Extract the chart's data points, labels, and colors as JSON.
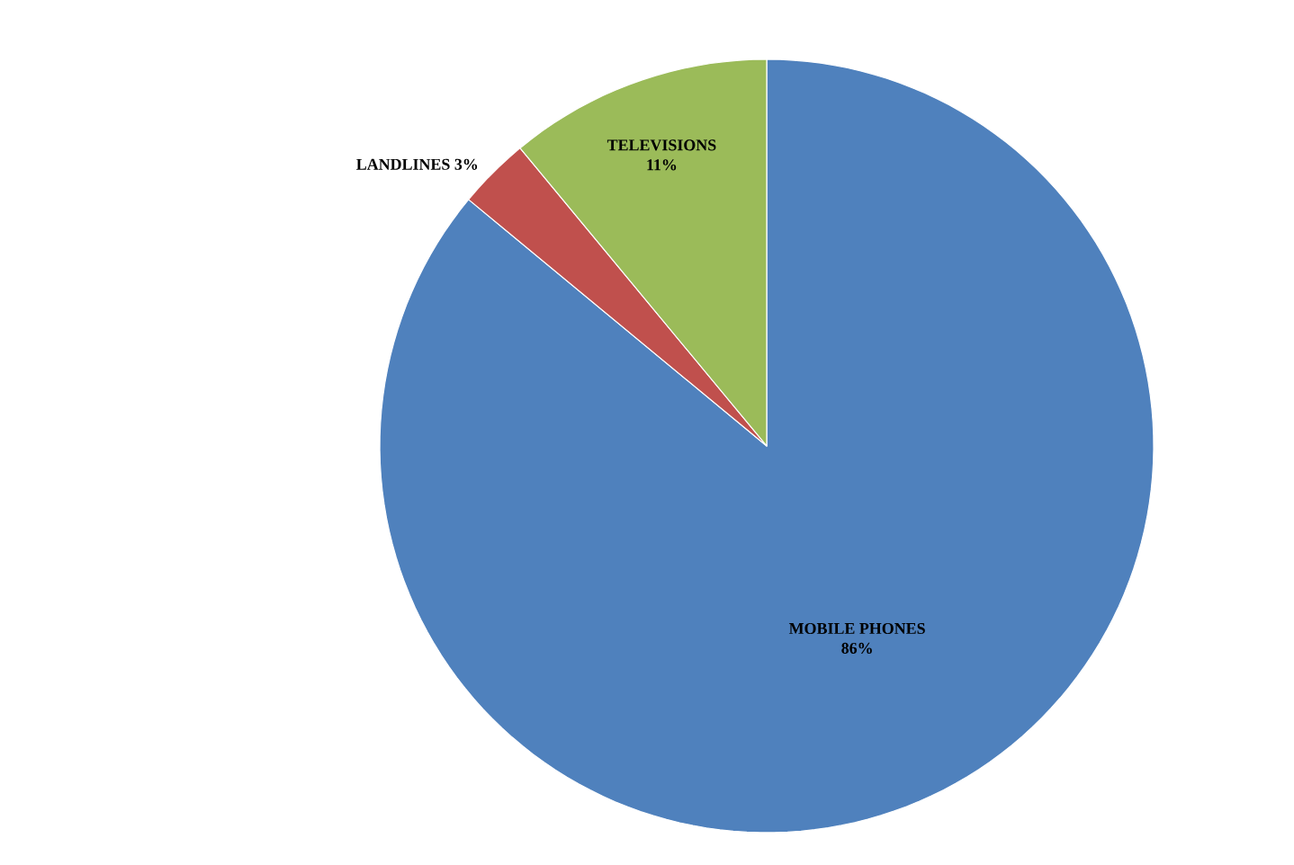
{
  "chart_data": {
    "type": "pie",
    "categories": [
      "MOBILE PHONES",
      "LANDLINES",
      "TELEVISIONS"
    ],
    "values": [
      86,
      3,
      11
    ],
    "value_labels": [
      "86%",
      "3%",
      "11%"
    ],
    "colors": [
      "#4f81bd",
      "#c0504d",
      "#9bbb59"
    ]
  }
}
